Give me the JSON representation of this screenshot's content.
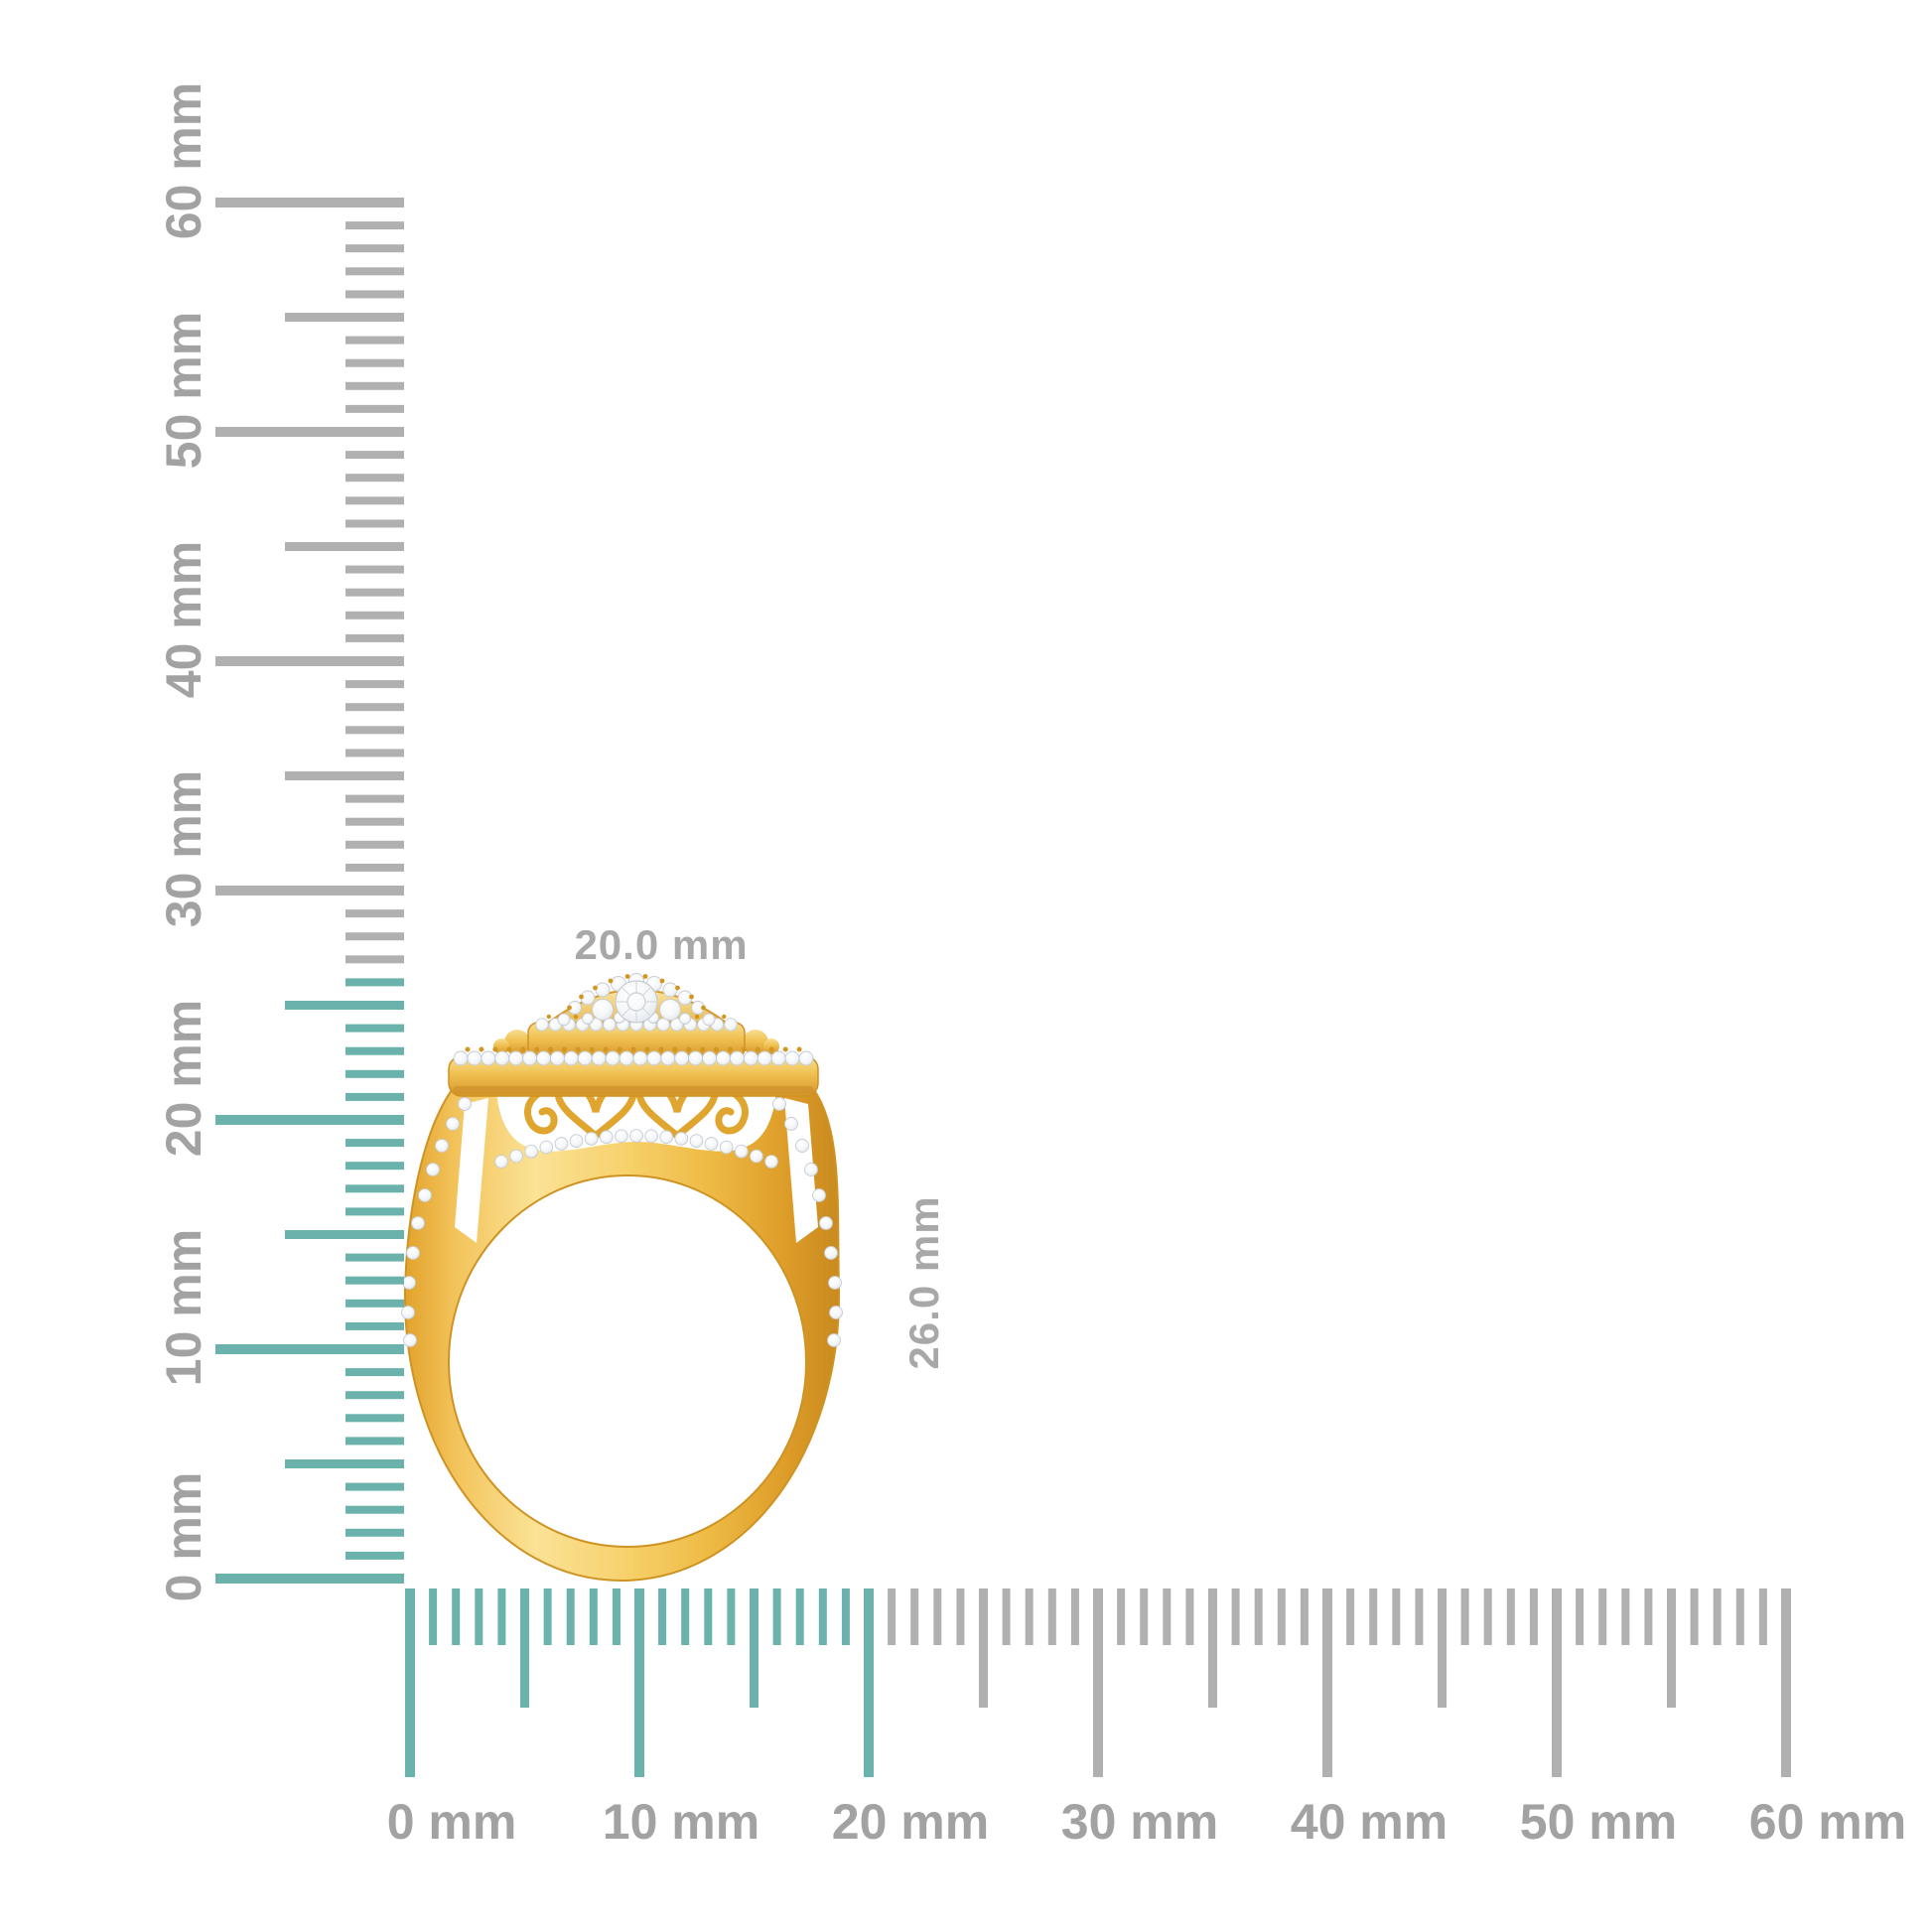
{
  "page": {
    "background": "#ffffff",
    "description_unit": "mm"
  },
  "colors": {
    "highlight_teal": "#6ab2ab",
    "tick_gray": "#b0b0b0",
    "ruler_label_gray": "#a2a2a2",
    "dimension_label_gray": "#a8a8a8",
    "gold": "#f2c45a",
    "gold_light": "#fbe9a8",
    "gold_dark": "#d3961f",
    "gold_deep": "#b67c15",
    "diamond_white": "#ffffff",
    "diamond_edge": "#c6ccd4"
  },
  "rulers": {
    "vertical": {
      "min_mm": 0,
      "max_mm": 60,
      "minor_step_mm": 1,
      "mid_step_mm": 5,
      "major_step_mm": 10,
      "highlight_from_mm": 0,
      "highlight_to_mm": 26,
      "labels": [
        "0 mm",
        "10 mm",
        "20 mm",
        "30 mm",
        "40 mm",
        "50 mm",
        "60 mm"
      ]
    },
    "horizontal": {
      "min_mm": 0,
      "max_mm": 60,
      "minor_step_mm": 1,
      "mid_step_mm": 5,
      "major_step_mm": 10,
      "highlight_from_mm": 0,
      "highlight_to_mm": 20,
      "labels": [
        "0 mm",
        "10 mm",
        "20 mm",
        "30 mm",
        "40 mm",
        "50 mm",
        "60 mm"
      ]
    }
  },
  "ring": {
    "width_label": "20.0 mm",
    "height_label": "26.0 mm"
  }
}
